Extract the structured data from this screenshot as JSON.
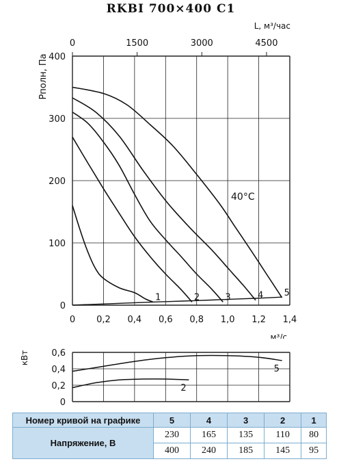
{
  "chart_data": [
    {
      "type": "line",
      "title": "RKBI 700×400 C1",
      "xlabel": "м³/с",
      "ylabel": "Pполн, Па",
      "x2label": "L, м³/час",
      "xlim": [
        0,
        1.4
      ],
      "ylim": [
        0,
        400
      ],
      "xticks": [
        "0",
        "0,2",
        "0,4",
        "0,6",
        "0,8",
        "1,0",
        "1,2",
        "1,4"
      ],
      "yticks": [
        "0",
        "100",
        "200",
        "300",
        "400"
      ],
      "x2ticks": [
        "0",
        "1500",
        "3000",
        "4500"
      ],
      "grid": true,
      "annotation": "40°C",
      "series": [
        {
          "name": "1",
          "x": [
            0,
            0.05,
            0.1,
            0.15,
            0.2,
            0.3,
            0.4,
            0.47,
            0.52
          ],
          "y": [
            160,
            120,
            85,
            58,
            43,
            28,
            20,
            10,
            5
          ]
        },
        {
          "name": "2",
          "x": [
            0,
            0.1,
            0.2,
            0.3,
            0.4,
            0.5,
            0.6,
            0.7,
            0.77
          ],
          "y": [
            270,
            228,
            187,
            148,
            110,
            78,
            50,
            25,
            5
          ]
        },
        {
          "name": "3",
          "x": [
            0,
            0.1,
            0.2,
            0.3,
            0.4,
            0.5,
            0.6,
            0.7,
            0.8,
            0.9,
            0.97
          ],
          "y": [
            310,
            292,
            262,
            225,
            178,
            135,
            105,
            78,
            50,
            25,
            5
          ]
        },
        {
          "name": "4",
          "x": [
            0,
            0.15,
            0.3,
            0.45,
            0.6,
            0.75,
            0.9,
            1.0,
            1.1,
            1.18
          ],
          "y": [
            333,
            310,
            272,
            218,
            168,
            126,
            88,
            60,
            32,
            8
          ]
        },
        {
          "name": "5",
          "x": [
            0,
            0.2,
            0.35,
            0.5,
            0.65,
            0.8,
            0.95,
            1.05,
            1.15,
            1.25,
            1.35
          ],
          "y": [
            350,
            340,
            322,
            290,
            255,
            210,
            162,
            125,
            88,
            50,
            12
          ]
        }
      ],
      "system_line": {
        "x": [
          0,
          0.52,
          0.77,
          0.97,
          1.18,
          1.35
        ],
        "y": [
          0,
          5,
          7,
          9,
          11,
          13
        ]
      }
    },
    {
      "type": "line",
      "ylabel": "кВт",
      "xlim": [
        0,
        1.4
      ],
      "ylim": [
        0,
        0.6
      ],
      "yticks": [
        "0",
        "0,2",
        "0,4",
        "0,6"
      ],
      "series": [
        {
          "name": "5",
          "x": [
            0,
            0.2,
            0.4,
            0.6,
            0.8,
            1.0,
            1.2,
            1.35
          ],
          "y": [
            0.37,
            0.43,
            0.49,
            0.535,
            0.56,
            0.56,
            0.54,
            0.5
          ]
        },
        {
          "name": "2",
          "x": [
            0,
            0.15,
            0.3,
            0.45,
            0.6,
            0.75
          ],
          "y": [
            0.17,
            0.23,
            0.265,
            0.275,
            0.275,
            0.265
          ]
        }
      ]
    }
  ],
  "table": {
    "row1_label": "Номер кривой на графике",
    "row2_label": "Напряжение, В",
    "curve_numbers": [
      "5",
      "4",
      "3",
      "2",
      "1"
    ],
    "voltage_a": [
      "230",
      "165",
      "135",
      "110",
      "80"
    ],
    "voltage_b": [
      "400",
      "240",
      "185",
      "145",
      "95"
    ]
  }
}
